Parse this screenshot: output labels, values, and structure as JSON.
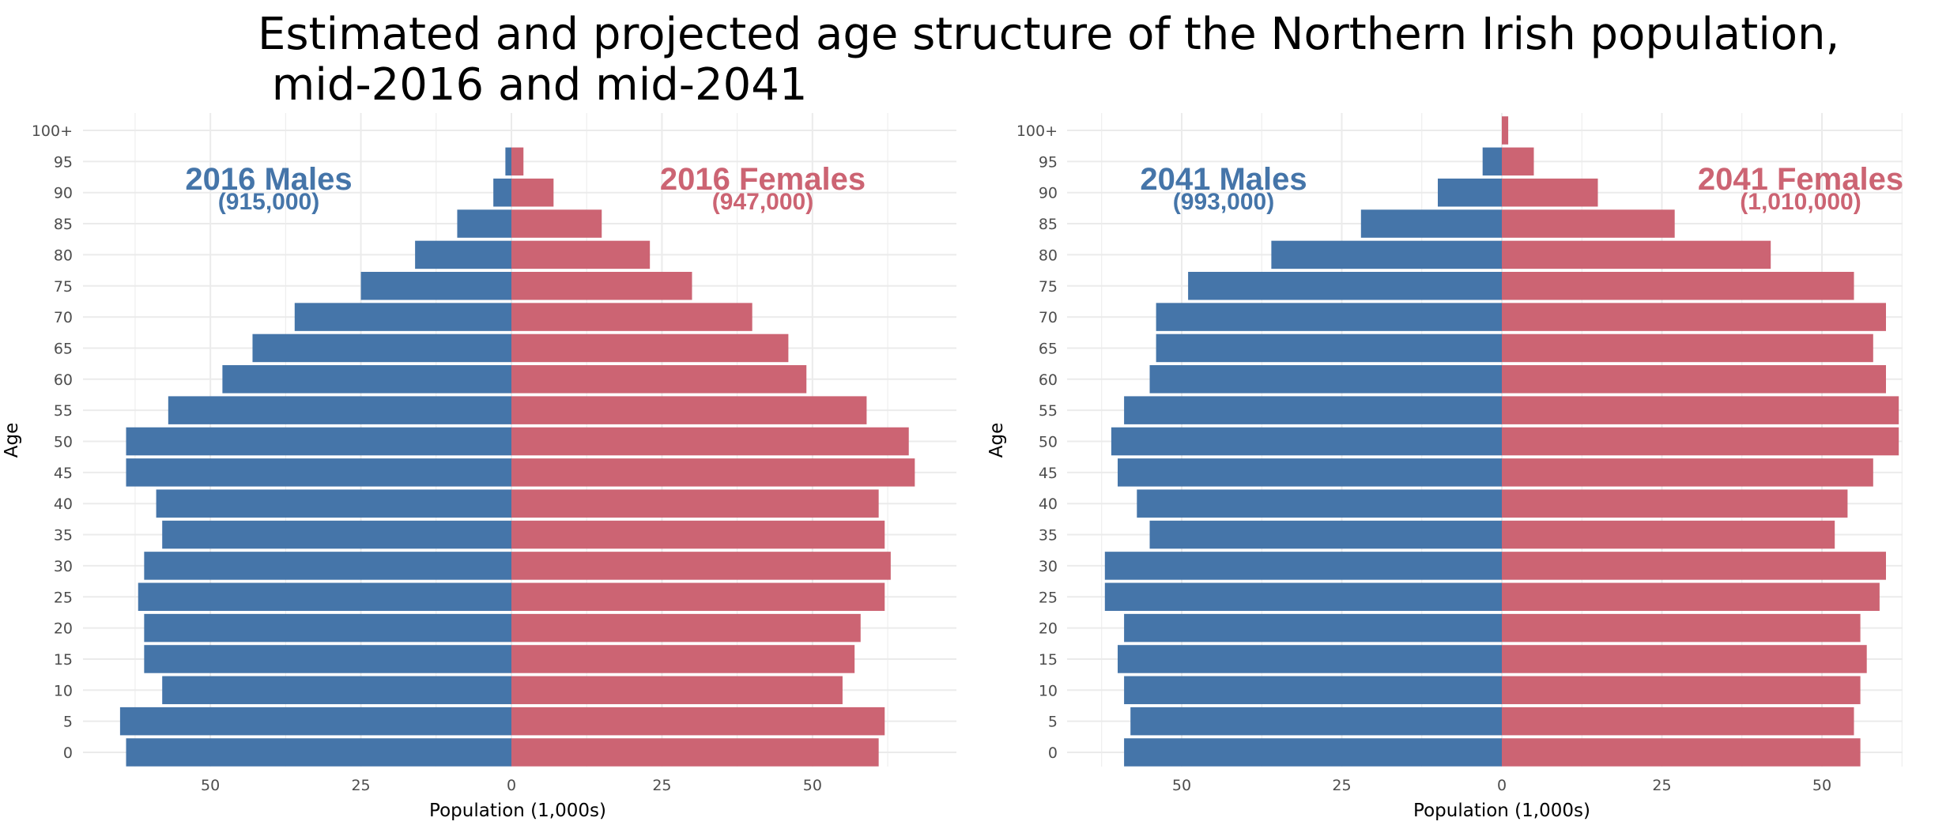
{
  "title": "Estimated and projected age structure of the Northern Irish population,\n mid-2016 and mid-2041",
  "colors": {
    "male": "#4575A9",
    "female": "#CC6473",
    "grid": "#EBEBEB"
  },
  "chart_data": [
    {
      "type": "bar",
      "orientation": "horizontal",
      "ylabel": "Age",
      "xlabel": "Population (1,000s)",
      "xticks": [
        50,
        25,
        0,
        25,
        50
      ],
      "xlim": [
        -70,
        74
      ],
      "categories": [
        "0",
        "5",
        "10",
        "15",
        "20",
        "25",
        "30",
        "35",
        "40",
        "45",
        "50",
        "55",
        "60",
        "65",
        "70",
        "75",
        "80",
        "85",
        "90",
        "95",
        "100+"
      ],
      "series": [
        {
          "name": "2016 Males",
          "values": [
            64,
            65,
            58,
            61,
            61,
            62,
            61,
            58,
            59,
            64,
            64,
            57,
            48,
            43,
            36,
            25,
            16,
            9,
            3,
            1,
            0
          ]
        },
        {
          "name": "2016 Females",
          "values": [
            61,
            62,
            55,
            57,
            58,
            62,
            63,
            62,
            61,
            67,
            66,
            59,
            49,
            46,
            40,
            30,
            23,
            15,
            7,
            2,
            0
          ]
        }
      ],
      "annotations": {
        "male_label": "2016 Males",
        "male_total": "(915,000)",
        "female_label": "2016 Females",
        "female_total": "(947,000)"
      }
    },
    {
      "type": "bar",
      "orientation": "horizontal",
      "ylabel": "Age",
      "xlabel": "Population (1,000s)",
      "xticks": [
        50,
        25,
        0,
        25,
        50
      ],
      "xlim": [
        -67,
        66
      ],
      "categories": [
        "0",
        "5",
        "10",
        "15",
        "20",
        "25",
        "30",
        "35",
        "40",
        "45",
        "50",
        "55",
        "60",
        "65",
        "70",
        "75",
        "80",
        "85",
        "90",
        "95",
        "100+"
      ],
      "series": [
        {
          "name": "2041 Males",
          "values": [
            59,
            58,
            59,
            60,
            59,
            62,
            62,
            55,
            57,
            60,
            61,
            59,
            55,
            54,
            54,
            49,
            36,
            22,
            10,
            3,
            0
          ]
        },
        {
          "name": "2041 Females",
          "values": [
            56,
            55,
            56,
            57,
            56,
            59,
            60,
            52,
            54,
            58,
            62,
            62,
            60,
            58,
            60,
            55,
            42,
            27,
            15,
            5,
            1
          ]
        }
      ],
      "annotations": {
        "male_label": "2041 Males",
        "male_total": "(993,000)",
        "female_label": "2041 Females",
        "female_total": "(1,010,000)"
      }
    }
  ]
}
